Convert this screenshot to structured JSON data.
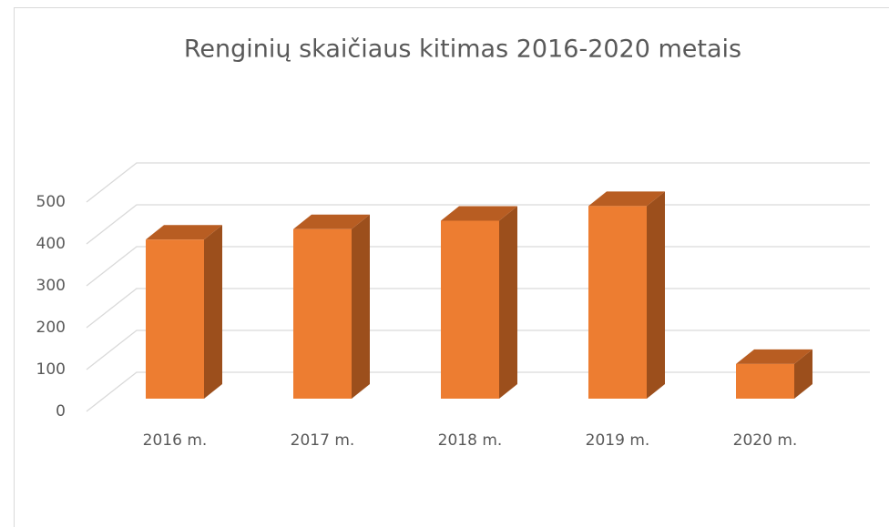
{
  "chart_data": {
    "type": "bar3d",
    "title": "Renginių skaičiaus kitimas 2016-2020 metais",
    "categories": [
      "2016 m.",
      "2017 m.",
      "2018 m.",
      "2019 m.",
      "2020 m."
    ],
    "values": [
      380,
      405,
      425,
      460,
      83
    ],
    "color": "#ed7d31",
    "ylim": [
      0,
      500
    ],
    "yticks": [
      0,
      100,
      200,
      300,
      400,
      500
    ],
    "grid": true
  }
}
